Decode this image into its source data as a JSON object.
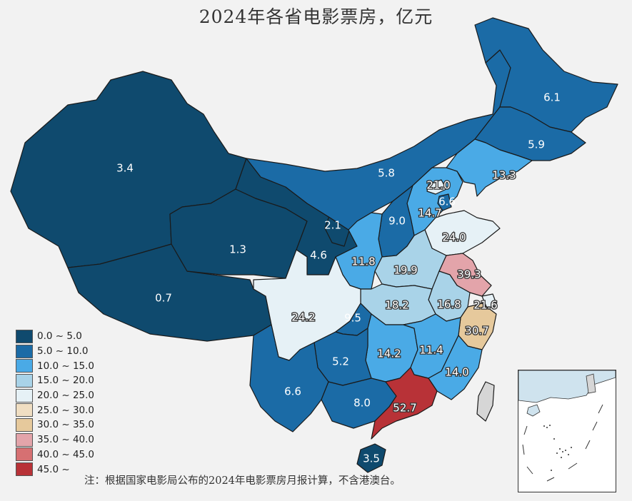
{
  "title": "2024年各省电影票房，亿元",
  "note": "注：根据国家电影局公布的2024年电影票房月报计算，不含港澳台。",
  "legend": [
    {
      "label": "0.0 ~ 5.0",
      "color": "#0f4a6e"
    },
    {
      "label": "5.0 ~ 10.0",
      "color": "#1b6ba6"
    },
    {
      "label": "10.0 ~ 15.0",
      "color": "#4aaae6"
    },
    {
      "label": "15.0 ~ 20.0",
      "color": "#a9d3e8"
    },
    {
      "label": "20.0 ~ 25.0",
      "color": "#e6f1f6"
    },
    {
      "label": "25.0 ~ 30.0",
      "color": "#f0dec2"
    },
    {
      "label": "30.0 ~ 35.0",
      "color": "#e6c99c"
    },
    {
      "label": "35.0 ~ 40.0",
      "color": "#e3a4aa"
    },
    {
      "label": "40.0 ~ 45.0",
      "color": "#d67072"
    },
    {
      "label": "45.0 ~",
      "color": "#b83237"
    }
  ],
  "chart_data": {
    "type": "choropleth",
    "values": [
      "3.4",
      "1.3",
      "0.7",
      "2.1",
      "4.6",
      "5.8",
      "6.1",
      "5.9",
      "13.3",
      "21.0",
      "6.6",
      "14.7",
      "9.0",
      "24.0",
      "11.8",
      "19.9",
      "39.3",
      "24.2",
      "18.2",
      "16.8",
      "21.6",
      "9.5",
      "30.7",
      "5.2",
      "14.2",
      "11.4",
      "6.6",
      "14.0",
      "8.0",
      "52.7",
      "3.5"
    ]
  }
}
